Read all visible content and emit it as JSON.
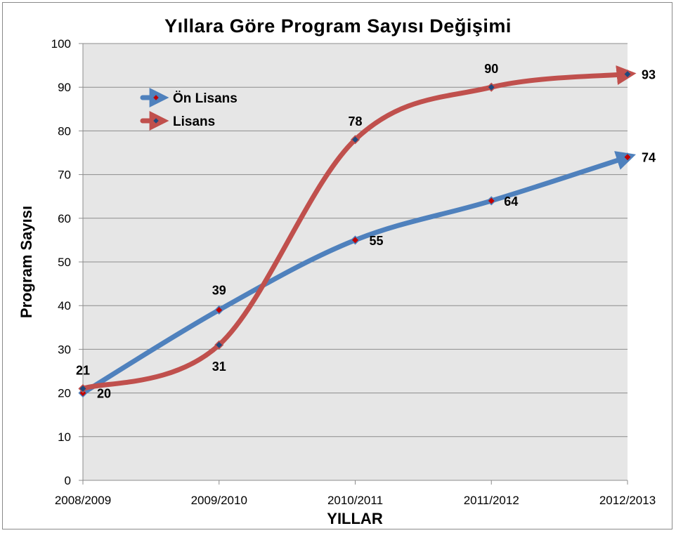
{
  "chart_data": {
    "type": "line",
    "title": "Yıllara Göre Program Sayısı Değişimi",
    "xlabel": "YILLAR",
    "ylabel": "Program Sayısı",
    "categories": [
      "2008/2009",
      "2009/2010",
      "2010/2011",
      "2011/2012",
      "2012/2013"
    ],
    "ylim": [
      0,
      100
    ],
    "yticks": [
      0,
      10,
      20,
      30,
      40,
      50,
      60,
      70,
      80,
      90,
      100
    ],
    "grid": true,
    "legend_position": "top-left",
    "series": [
      {
        "name": "Ön Lisans",
        "values": [
          20,
          39,
          55,
          64,
          74
        ],
        "color": "#4f81bd",
        "marker_color": "#c00000"
      },
      {
        "name": "Lisans",
        "values": [
          21,
          31,
          78,
          90,
          93
        ],
        "color": "#c0504d",
        "marker_color": "#1f497d"
      }
    ],
    "plot_background": "#e6e6e6"
  }
}
